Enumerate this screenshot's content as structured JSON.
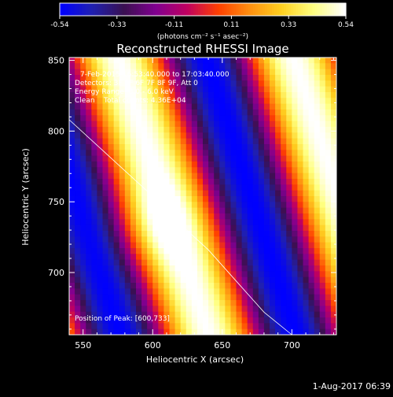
{
  "chart_data": {
    "type": "heatmap",
    "title": "Reconstructed RHESSI Image",
    "xlabel": "Heliocentric X (arcsec)",
    "ylabel": "Heliocentric Y (arcsec)",
    "xlim": [
      540,
      732
    ],
    "ylim": [
      656,
      852
    ],
    "x_ticks": [
      550,
      600,
      650,
      700
    ],
    "y_ticks": [
      700,
      750,
      800,
      850
    ],
    "colorbar": {
      "min": -0.54,
      "max": 0.54,
      "ticks": [
        "-0.54",
        "-0.33",
        "-0.11",
        "0.11",
        "0.33",
        "0.54"
      ],
      "unit_label": "(photons cm⁻² s⁻¹ asec⁻²)",
      "colors": [
        "#0000ff",
        "#2020b0",
        "#3a1050",
        "#800090",
        "#c00060",
        "#ff4000",
        "#ff9010",
        "#ffd020",
        "#ffff80",
        "#ffffff"
      ]
    },
    "annotations": [
      "7-Feb-2015 16:53:40.000 to 17:03:40.000",
      "Detectors: 3F 5F 6F 7F 8F 9F, Att 0",
      "Energy Range: 3.0 - 6.0 keV",
      "Clean    Total counts: 4.36E+04"
    ],
    "peak_label": "Position of Peak: [600,733]",
    "peak": [
      600,
      733
    ],
    "limb": [
      [
        540,
        808
      ],
      [
        560,
        790
      ],
      [
        580,
        772
      ],
      [
        600,
        754
      ],
      [
        620,
        734
      ],
      [
        640,
        716
      ],
      [
        660,
        694
      ],
      [
        680,
        672
      ],
      [
        700,
        656
      ]
    ],
    "date_stamp": "1-Aug-2017 06:39"
  }
}
